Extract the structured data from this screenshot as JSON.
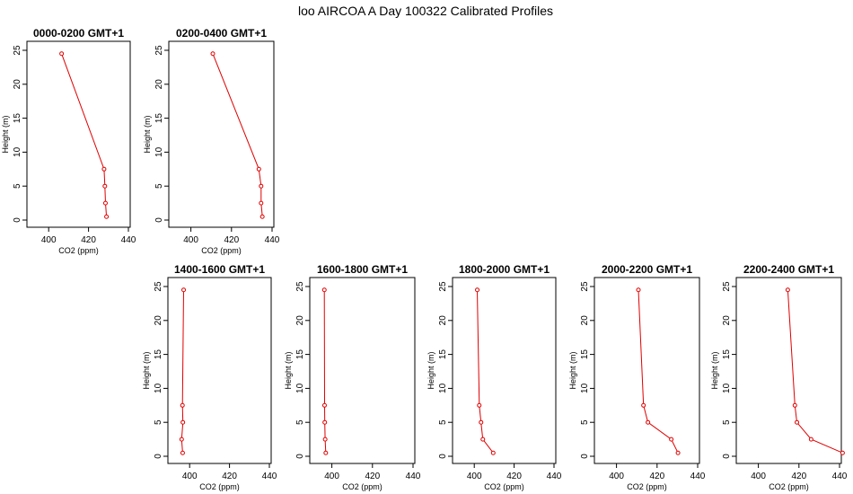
{
  "title": "loo AIRCOA A  Day 100322  Calibrated Profiles",
  "colors": {
    "series": "#e00000",
    "axis": "#000000"
  },
  "chart_data": [
    {
      "type": "line",
      "title": "0000-0200 GMT+1",
      "xlabel": "CO2 (ppm)",
      "ylabel": "Height (m)",
      "xlim": [
        390,
        440
      ],
      "ylim": [
        0,
        25
      ],
      "xticks": [
        400,
        420,
        440
      ],
      "yticks": [
        0,
        5,
        10,
        15,
        20,
        25
      ],
      "x": [
        429.0,
        428.5,
        428.2,
        427.8,
        406.5
      ],
      "y": [
        0.5,
        2.5,
        5,
        7.5,
        24.5
      ]
    },
    {
      "type": "line",
      "title": "0200-0400 GMT+1",
      "xlabel": "CO2 (ppm)",
      "ylabel": "Height (m)",
      "xlim": [
        390,
        440
      ],
      "ylim": [
        0,
        25
      ],
      "xticks": [
        400,
        420,
        440
      ],
      "yticks": [
        0,
        5,
        10,
        15,
        20,
        25
      ],
      "x": [
        435.2,
        434.6,
        434.6,
        433.5,
        410.8
      ],
      "y": [
        0.5,
        2.5,
        5,
        7.5,
        24.5
      ]
    },
    {
      "type": "line",
      "title": "1400-1600 GMT+1",
      "xlabel": "CO2 (ppm)",
      "ylabel": "Height (m)",
      "xlim": [
        390,
        440
      ],
      "ylim": [
        0,
        25
      ],
      "xticks": [
        400,
        420,
        440
      ],
      "yticks": [
        0,
        5,
        10,
        15,
        20,
        25
      ],
      "x": [
        396.5,
        396.0,
        396.6,
        396.4,
        397.0
      ],
      "y": [
        0.5,
        2.5,
        5,
        7.5,
        24.5
      ]
    },
    {
      "type": "line",
      "title": "1600-1800 GMT+1",
      "xlabel": "CO2 (ppm)",
      "ylabel": "Height (m)",
      "xlim": [
        390,
        440
      ],
      "ylim": [
        0,
        25
      ],
      "xticks": [
        400,
        420,
        440
      ],
      "yticks": [
        0,
        5,
        10,
        15,
        20,
        25
      ],
      "x": [
        397.0,
        396.7,
        396.5,
        396.4,
        396.3
      ],
      "y": [
        0.5,
        2.5,
        5,
        7.5,
        24.5
      ]
    },
    {
      "type": "line",
      "title": "1800-2000 GMT+1",
      "xlabel": "CO2 (ppm)",
      "ylabel": "Height (m)",
      "xlim": [
        390,
        440
      ],
      "ylim": [
        0,
        25
      ],
      "xticks": [
        400,
        420,
        440
      ],
      "yticks": [
        0,
        5,
        10,
        15,
        20,
        25
      ],
      "x": [
        409.5,
        404.3,
        403.4,
        402.5,
        401.5
      ],
      "y": [
        0.5,
        2.5,
        5,
        7.5,
        24.5
      ]
    },
    {
      "type": "line",
      "title": "2000-2200 GMT+1",
      "xlabel": "CO2 (ppm)",
      "ylabel": "Height (m)",
      "xlim": [
        390,
        440
      ],
      "ylim": [
        0,
        25
      ],
      "xticks": [
        400,
        420,
        440
      ],
      "yticks": [
        0,
        5,
        10,
        15,
        20,
        25
      ],
      "x": [
        430.3,
        427.0,
        415.5,
        413.3,
        410.8
      ],
      "y": [
        0.5,
        2.5,
        5,
        7.5,
        24.5
      ]
    },
    {
      "type": "line",
      "title": "2200-2400 GMT+1",
      "xlabel": "CO2 (ppm)",
      "ylabel": "Height (m)",
      "xlim": [
        390,
        440
      ],
      "ylim": [
        0,
        25
      ],
      "xticks": [
        400,
        420,
        440
      ],
      "yticks": [
        0,
        5,
        10,
        15,
        20,
        25
      ],
      "x": [
        441.5,
        426.0,
        419.0,
        418.0,
        414.5
      ],
      "y": [
        0.5,
        2.5,
        5,
        7.5,
        24.5
      ]
    }
  ]
}
